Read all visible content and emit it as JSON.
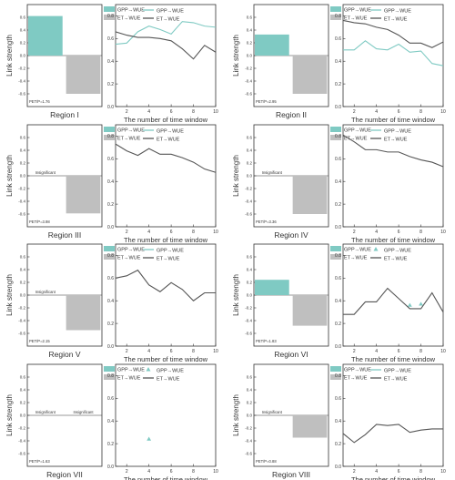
{
  "colors": {
    "gpp": "#7fcac3",
    "et": "#bfbfbf",
    "et_line": "#555555"
  },
  "legend": {
    "gpp": "GPP→WUE",
    "et": "ET→WUE"
  },
  "bar_ylabel": "Link strength",
  "line_xlabel": "The number of time window",
  "bar_yticks": [
    "0.6",
    "0.4",
    "0.2",
    "0.0",
    "-0.2",
    "-0.4",
    "-0.6"
  ],
  "line_yticks": [
    "0.8",
    "0.6",
    "0.4",
    "0.2",
    "0.0"
  ],
  "line_xticks": [
    "2",
    "4",
    "6",
    "8",
    "10"
  ],
  "insignificant_label": "Insignificant",
  "chart_data": [
    {
      "type": "bar",
      "region": "Region I",
      "pet_p": "PET/P=1.76",
      "categories": [
        "GPP→WUE",
        "ET→WUE"
      ],
      "values": [
        0.62,
        -0.6
      ],
      "insignificant": [
        false,
        false
      ],
      "ylim": [
        -0.8,
        0.8
      ],
      "ylabel": "Link strength"
    },
    {
      "type": "line",
      "xlabel": "The number of time window",
      "ylabel": "Link strength",
      "xlim": [
        1,
        10
      ],
      "ylim": [
        0,
        0.9
      ],
      "series": [
        {
          "name": "GPP→WUE",
          "style": "line",
          "x": [
            1,
            2,
            3,
            4,
            5,
            6,
            7,
            8,
            9,
            10
          ],
          "y": [
            0.55,
            0.56,
            0.66,
            0.71,
            0.68,
            0.64,
            0.75,
            0.74,
            0.71,
            0.7
          ]
        },
        {
          "name": "ET→WUE",
          "style": "line",
          "x": [
            1,
            2,
            3,
            4,
            5,
            6,
            7,
            8,
            9,
            10
          ],
          "y": [
            0.66,
            0.63,
            0.61,
            0.61,
            0.6,
            0.58,
            0.51,
            0.42,
            0.54,
            0.48
          ]
        }
      ]
    },
    {
      "type": "bar",
      "region": "Region II",
      "pet_p": "PET/P=2.95",
      "categories": [
        "GPP→WUE",
        "ET→WUE"
      ],
      "values": [
        0.33,
        -0.6
      ],
      "insignificant": [
        false,
        false
      ],
      "ylim": [
        -0.8,
        0.8
      ],
      "ylabel": "Link strength"
    },
    {
      "type": "line",
      "xlabel": "The number of time window",
      "ylabel": "Link strength",
      "xlim": [
        1,
        10
      ],
      "ylim": [
        0,
        0.9
      ],
      "series": [
        {
          "name": "GPP→WUE",
          "style": "line",
          "x": [
            1,
            2,
            3,
            4,
            5,
            6,
            7,
            8,
            9,
            10
          ],
          "y": [
            0.5,
            0.5,
            0.58,
            0.51,
            0.5,
            0.55,
            0.48,
            0.49,
            0.38,
            0.36
          ]
        },
        {
          "name": "ET→WUE",
          "style": "line",
          "x": [
            1,
            2,
            3,
            4,
            5,
            6,
            7,
            8,
            9,
            10
          ],
          "y": [
            0.76,
            0.74,
            0.73,
            0.7,
            0.68,
            0.63,
            0.56,
            0.56,
            0.52,
            0.57
          ]
        }
      ]
    },
    {
      "type": "bar",
      "region": "Region III",
      "pet_p": "PET/P=3.98",
      "categories": [
        "GPP→WUE",
        "ET→WUE"
      ],
      "values": [
        0,
        -0.59
      ],
      "insignificant": [
        true,
        false
      ],
      "ylim": [
        -0.8,
        0.8
      ],
      "ylabel": "Link strength"
    },
    {
      "type": "line",
      "xlabel": "The number of time window",
      "ylabel": "Link strength",
      "xlim": [
        1,
        10
      ],
      "ylim": [
        0,
        0.9
      ],
      "series": [
        {
          "name": "ET→WUE",
          "style": "line",
          "x": [
            1,
            2,
            3,
            4,
            5,
            6,
            7,
            8,
            9,
            10
          ],
          "y": [
            0.73,
            0.67,
            0.63,
            0.69,
            0.64,
            0.64,
            0.61,
            0.57,
            0.51,
            0.48
          ]
        }
      ]
    },
    {
      "type": "bar",
      "region": "Region IV",
      "pet_p": "PET/P=3.36",
      "categories": [
        "GPP→WUE",
        "ET→WUE"
      ],
      "values": [
        0,
        -0.6
      ],
      "insignificant": [
        true,
        false
      ],
      "ylim": [
        -0.8,
        0.8
      ],
      "ylabel": "Link strength"
    },
    {
      "type": "line",
      "xlabel": "The number of time window",
      "ylabel": "Link strength",
      "xlim": [
        1,
        10
      ],
      "ylim": [
        0,
        0.9
      ],
      "series": [
        {
          "name": "ET→WUE",
          "style": "line",
          "x": [
            1,
            2,
            3,
            4,
            5,
            6,
            7,
            8,
            9,
            10
          ],
          "y": [
            0.81,
            0.75,
            0.68,
            0.68,
            0.66,
            0.66,
            0.62,
            0.59,
            0.57,
            0.53
          ]
        }
      ]
    },
    {
      "type": "bar",
      "region": "Region V",
      "pet_p": "PET/P=2.15",
      "categories": [
        "GPP→WUE",
        "ET→WUE"
      ],
      "values": [
        0,
        -0.55
      ],
      "insignificant": [
        true,
        false
      ],
      "ylim": [
        -0.8,
        0.8
      ],
      "ylabel": "Link strength"
    },
    {
      "type": "line",
      "xlabel": "The number of time window",
      "ylabel": "Link strength",
      "xlim": [
        1,
        10
      ],
      "ylim": [
        0,
        0.9
      ],
      "series": [
        {
          "name": "ET→WUE",
          "style": "line",
          "x": [
            1,
            2,
            3,
            4,
            5,
            6,
            7,
            8,
            9,
            10
          ],
          "y": [
            0.6,
            0.62,
            0.67,
            0.54,
            0.48,
            0.56,
            0.5,
            0.4,
            0.47,
            0.47
          ]
        }
      ]
    },
    {
      "type": "bar",
      "region": "Region VI",
      "pet_p": "PET/P=1.83",
      "categories": [
        "GPP→WUE",
        "ET→WUE"
      ],
      "values": [
        0.24,
        -0.48
      ],
      "insignificant": [
        false,
        false
      ],
      "ylim": [
        -0.8,
        0.8
      ],
      "ylabel": "Link strength"
    },
    {
      "type": "line",
      "xlabel": "The number of time window",
      "ylabel": "Link strength",
      "xlim": [
        1,
        10
      ],
      "ylim": [
        0,
        0.9
      ],
      "series": [
        {
          "name": "GPP→WUE",
          "style": "markers",
          "x": [
            7,
            8
          ],
          "y": [
            0.36,
            0.37
          ]
        },
        {
          "name": "ET→WUE",
          "style": "line",
          "x": [
            1,
            2,
            3,
            4,
            5,
            6,
            7,
            8,
            9,
            10
          ],
          "y": [
            0.28,
            0.28,
            0.39,
            0.39,
            0.51,
            0.42,
            0.33,
            0.33,
            0.47,
            0.3
          ]
        }
      ]
    },
    {
      "type": "bar",
      "region": "Region VII",
      "pet_p": "PET/P=1.63",
      "categories": [
        "GPP→WUE",
        "ET→WUE"
      ],
      "values": [
        0,
        0
      ],
      "insignificant": [
        true,
        true
      ],
      "ylim": [
        -0.8,
        0.8
      ],
      "ylabel": "Link strength"
    },
    {
      "type": "line",
      "xlabel": "The number of time window",
      "ylabel": "Link strength",
      "xlim": [
        1,
        10
      ],
      "ylim": [
        0,
        0.9
      ],
      "series": [
        {
          "name": "GPP→WUE",
          "style": "markers",
          "x": [
            4
          ],
          "y": [
            0.24
          ]
        }
      ]
    },
    {
      "type": "bar",
      "region": "Region VIII",
      "pet_p": "PET/P=0.88",
      "categories": [
        "GPP→WUE",
        "ET→WUE"
      ],
      "values": [
        0,
        -0.35
      ],
      "insignificant": [
        true,
        false
      ],
      "ylim": [
        -0.8,
        0.8
      ],
      "ylabel": "Link strength"
    },
    {
      "type": "line",
      "xlabel": "The number of time window",
      "ylabel": "Link strength",
      "xlim": [
        1,
        10
      ],
      "ylim": [
        0,
        0.9
      ],
      "series": [
        {
          "name": "ET→WUE",
          "style": "line",
          "x": [
            1,
            2,
            3,
            4,
            5,
            6,
            7,
            8,
            9,
            10
          ],
          "y": [
            0.29,
            0.21,
            0.28,
            0.37,
            0.36,
            0.37,
            0.3,
            0.32,
            0.33,
            0.33
          ]
        }
      ]
    }
  ]
}
